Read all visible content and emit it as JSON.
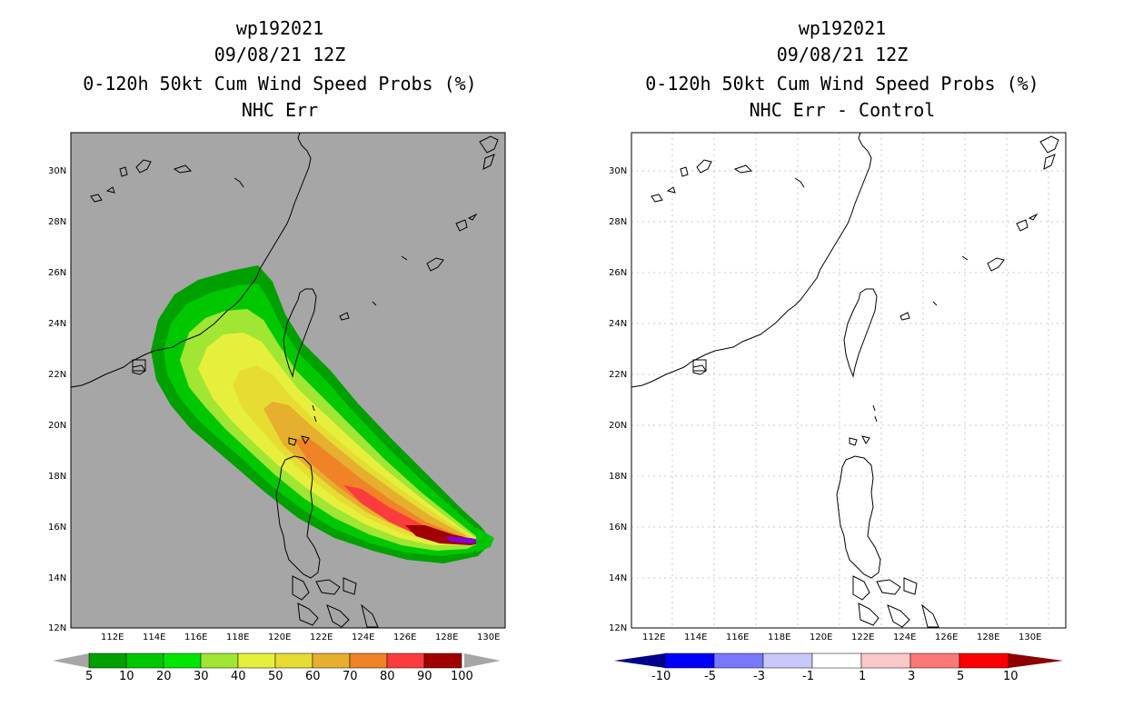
{
  "left_panel": {
    "title_lines": [
      "wp192021",
      "09/08/21 12Z",
      "0-120h 50kt Cum Wind Speed Probs (%)",
      "NHC Err"
    ],
    "colorbar": {
      "labels": [
        "5",
        "10",
        "20",
        "30",
        "40",
        "50",
        "60",
        "70",
        "80",
        "90",
        "100"
      ],
      "colors": [
        "#00a000",
        "#00c800",
        "#00e600",
        "#a0e632",
        "#e6f03c",
        "#e6dc32",
        "#e6af2d",
        "#f08228",
        "#fa3c3c",
        "#a00000",
        "#8200dc"
      ],
      "arrow_color": "#a6a6a6"
    },
    "background": "#a6a6a6"
  },
  "right_panel": {
    "title_lines": [
      "wp192021",
      "09/08/21 12Z",
      "0-120h 50kt Cum Wind Speed Probs (%)",
      "NHC Err - Control"
    ],
    "colorbar": {
      "labels": [
        "-10",
        "-5",
        "-3",
        "-1",
        "1",
        "3",
        "5",
        "10"
      ],
      "colors": [
        "#00008c",
        "#0000fa",
        "#7878fa",
        "#c8c8fa",
        "#ffffff",
        "#fac8c8",
        "#fa7878",
        "#fa0000",
        "#8c0000"
      ]
    },
    "background": "#ffffff"
  },
  "axes": {
    "lat_labels": [
      "30N",
      "28N",
      "26N",
      "24N",
      "22N",
      "20N",
      "18N",
      "16N",
      "14N",
      "12N"
    ],
    "lon_labels": [
      "112E",
      "114E",
      "116E",
      "118E",
      "120E",
      "122E",
      "124E",
      "126E",
      "128E",
      "130E"
    ]
  }
}
